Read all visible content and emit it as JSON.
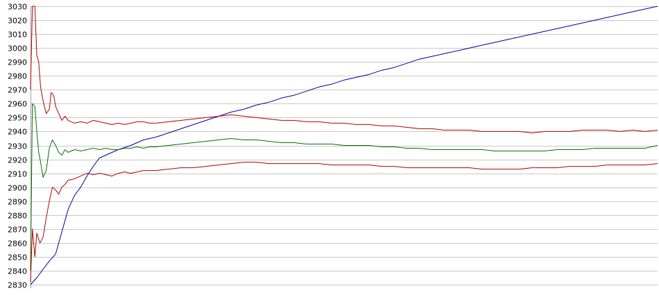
{
  "chart_data": {
    "type": "line",
    "title": "",
    "xlabel": "",
    "ylabel": "",
    "ylim": [
      2830,
      3030
    ],
    "y_ticks": [
      "3030",
      "3020",
      "3010",
      "3000",
      "2990",
      "2980",
      "2970",
      "2960",
      "2950",
      "2940",
      "2930",
      "2920",
      "2910",
      "2900",
      "2890",
      "2880",
      "2870",
      "2860",
      "2850",
      "2840",
      "2830"
    ],
    "grid": true,
    "legend": "none",
    "xlim": [
      0,
      100
    ],
    "series": [
      {
        "color": "#000099",
        "points": [
          [
            0,
            2830
          ],
          [
            1,
            2835
          ],
          [
            2,
            2841
          ],
          [
            3,
            2847
          ],
          [
            4,
            2852
          ],
          [
            5,
            2868
          ],
          [
            6,
            2884
          ],
          [
            7,
            2894
          ],
          [
            8,
            2900
          ],
          [
            9,
            2908
          ],
          [
            10,
            2915
          ],
          [
            11,
            2921
          ],
          [
            12,
            2923
          ],
          [
            13,
            2925
          ],
          [
            14,
            2927
          ],
          [
            16,
            2930
          ],
          [
            18,
            2934
          ],
          [
            20,
            2936
          ],
          [
            22,
            2939
          ],
          [
            24,
            2942
          ],
          [
            26,
            2945
          ],
          [
            28,
            2948
          ],
          [
            30,
            2951
          ],
          [
            32,
            2954
          ],
          [
            34,
            2956
          ],
          [
            36,
            2959
          ],
          [
            38,
            2961
          ],
          [
            40,
            2964
          ],
          [
            42,
            2966
          ],
          [
            44,
            2969
          ],
          [
            46,
            2972
          ],
          [
            48,
            2974
          ],
          [
            50,
            2977
          ],
          [
            52,
            2979
          ],
          [
            54,
            2981
          ],
          [
            56,
            2984
          ],
          [
            58,
            2986
          ],
          [
            60,
            2989
          ],
          [
            62,
            2992
          ],
          [
            64,
            2994
          ],
          [
            66,
            2996
          ],
          [
            68,
            2998
          ],
          [
            70,
            3000
          ],
          [
            72,
            3002
          ],
          [
            74,
            3004
          ],
          [
            76,
            3006
          ],
          [
            78,
            3008
          ],
          [
            80,
            3010
          ],
          [
            82,
            3012
          ],
          [
            84,
            3014
          ],
          [
            86,
            3016
          ],
          [
            88,
            3018
          ],
          [
            90,
            3020
          ],
          [
            92,
            3022
          ],
          [
            94,
            3024
          ],
          [
            96,
            3026
          ],
          [
            98,
            3028
          ],
          [
            100,
            3030
          ]
        ]
      },
      {
        "color": "#b00000",
        "points": [
          [
            0,
            2970
          ],
          [
            0.3,
            3030
          ],
          [
            0.7,
            3030
          ],
          [
            1,
            2995
          ],
          [
            1.3,
            2990
          ],
          [
            1.6,
            2972
          ],
          [
            2,
            2962
          ],
          [
            2.5,
            2953
          ],
          [
            3,
            2956
          ],
          [
            3.3,
            2968
          ],
          [
            3.7,
            2966
          ],
          [
            4,
            2958
          ],
          [
            4.5,
            2953
          ],
          [
            5,
            2948
          ],
          [
            5.5,
            2951
          ],
          [
            6,
            2948
          ],
          [
            7,
            2946
          ],
          [
            8,
            2947
          ],
          [
            9,
            2946
          ],
          [
            10,
            2948
          ],
          [
            11,
            2947
          ],
          [
            12,
            2946
          ],
          [
            13,
            2945
          ],
          [
            14,
            2946
          ],
          [
            15,
            2945
          ],
          [
            16,
            2946
          ],
          [
            17,
            2947
          ],
          [
            18,
            2947
          ],
          [
            19,
            2946
          ],
          [
            20,
            2946
          ],
          [
            22,
            2947
          ],
          [
            24,
            2948
          ],
          [
            26,
            2949
          ],
          [
            28,
            2950
          ],
          [
            30,
            2951
          ],
          [
            32,
            2952
          ],
          [
            34,
            2951
          ],
          [
            36,
            2950
          ],
          [
            38,
            2949
          ],
          [
            40,
            2948
          ],
          [
            42,
            2948
          ],
          [
            44,
            2947
          ],
          [
            46,
            2947
          ],
          [
            48,
            2946
          ],
          [
            50,
            2946
          ],
          [
            52,
            2945
          ],
          [
            54,
            2945
          ],
          [
            56,
            2944
          ],
          [
            58,
            2944
          ],
          [
            60,
            2943
          ],
          [
            62,
            2942
          ],
          [
            64,
            2942
          ],
          [
            66,
            2941
          ],
          [
            68,
            2941
          ],
          [
            70,
            2941
          ],
          [
            72,
            2940
          ],
          [
            74,
            2940
          ],
          [
            76,
            2940
          ],
          [
            78,
            2940
          ],
          [
            80,
            2939
          ],
          [
            82,
            2940
          ],
          [
            84,
            2940
          ],
          [
            86,
            2940
          ],
          [
            88,
            2941
          ],
          [
            90,
            2941
          ],
          [
            92,
            2941
          ],
          [
            94,
            2940
          ],
          [
            96,
            2941
          ],
          [
            98,
            2940
          ],
          [
            100,
            2941
          ]
        ]
      },
      {
        "color": "#007000",
        "points": [
          [
            0,
            2840
          ],
          [
            0.3,
            2960
          ],
          [
            0.7,
            2958
          ],
          [
            1,
            2940
          ],
          [
            1.3,
            2925
          ],
          [
            1.6,
            2918
          ],
          [
            2,
            2907
          ],
          [
            2.5,
            2912
          ],
          [
            3,
            2928
          ],
          [
            3.5,
            2934
          ],
          [
            4,
            2930
          ],
          [
            4.5,
            2925
          ],
          [
            5,
            2923
          ],
          [
            5.5,
            2927
          ],
          [
            6,
            2925
          ],
          [
            7,
            2927
          ],
          [
            8,
            2926
          ],
          [
            9,
            2927
          ],
          [
            10,
            2928
          ],
          [
            11,
            2927
          ],
          [
            12,
            2928
          ],
          [
            13,
            2927
          ],
          [
            14,
            2927
          ],
          [
            15,
            2928
          ],
          [
            16,
            2928
          ],
          [
            17,
            2929
          ],
          [
            18,
            2928
          ],
          [
            19,
            2929
          ],
          [
            20,
            2929
          ],
          [
            22,
            2930
          ],
          [
            24,
            2931
          ],
          [
            26,
            2932
          ],
          [
            28,
            2933
          ],
          [
            30,
            2934
          ],
          [
            32,
            2935
          ],
          [
            34,
            2934
          ],
          [
            36,
            2934
          ],
          [
            38,
            2933
          ],
          [
            40,
            2932
          ],
          [
            42,
            2932
          ],
          [
            44,
            2931
          ],
          [
            46,
            2931
          ],
          [
            48,
            2931
          ],
          [
            50,
            2930
          ],
          [
            52,
            2930
          ],
          [
            54,
            2930
          ],
          [
            56,
            2929
          ],
          [
            58,
            2929
          ],
          [
            60,
            2928
          ],
          [
            62,
            2928
          ],
          [
            64,
            2927
          ],
          [
            66,
            2927
          ],
          [
            68,
            2927
          ],
          [
            70,
            2927
          ],
          [
            72,
            2927
          ],
          [
            74,
            2926
          ],
          [
            76,
            2926
          ],
          [
            78,
            2926
          ],
          [
            80,
            2926
          ],
          [
            82,
            2926
          ],
          [
            84,
            2927
          ],
          [
            86,
            2927
          ],
          [
            88,
            2927
          ],
          [
            90,
            2928
          ],
          [
            92,
            2928
          ],
          [
            94,
            2928
          ],
          [
            96,
            2928
          ],
          [
            98,
            2928
          ],
          [
            100,
            2930
          ]
        ]
      },
      {
        "color": "#b00000",
        "points": [
          [
            0,
            2832
          ],
          [
            0.3,
            2870
          ],
          [
            0.7,
            2850
          ],
          [
            1,
            2867
          ],
          [
            1.5,
            2860
          ],
          [
            2,
            2864
          ],
          [
            2.5,
            2878
          ],
          [
            3,
            2890
          ],
          [
            3.5,
            2900
          ],
          [
            4,
            2898
          ],
          [
            4.5,
            2895
          ],
          [
            5,
            2900
          ],
          [
            5.5,
            2902
          ],
          [
            6,
            2905
          ],
          [
            7,
            2906
          ],
          [
            8,
            2908
          ],
          [
            9,
            2910
          ],
          [
            10,
            2909
          ],
          [
            11,
            2910
          ],
          [
            12,
            2909
          ],
          [
            13,
            2908
          ],
          [
            14,
            2910
          ],
          [
            15,
            2911
          ],
          [
            16,
            2910
          ],
          [
            17,
            2911
          ],
          [
            18,
            2912
          ],
          [
            19,
            2912
          ],
          [
            20,
            2912
          ],
          [
            22,
            2913
          ],
          [
            24,
            2914
          ],
          [
            26,
            2914
          ],
          [
            28,
            2915
          ],
          [
            30,
            2916
          ],
          [
            32,
            2917
          ],
          [
            34,
            2918
          ],
          [
            36,
            2918
          ],
          [
            38,
            2917
          ],
          [
            40,
            2917
          ],
          [
            42,
            2917
          ],
          [
            44,
            2917
          ],
          [
            46,
            2917
          ],
          [
            48,
            2916
          ],
          [
            50,
            2916
          ],
          [
            52,
            2916
          ],
          [
            54,
            2916
          ],
          [
            56,
            2915
          ],
          [
            58,
            2915
          ],
          [
            60,
            2914
          ],
          [
            62,
            2914
          ],
          [
            64,
            2914
          ],
          [
            66,
            2914
          ],
          [
            68,
            2914
          ],
          [
            70,
            2914
          ],
          [
            72,
            2913
          ],
          [
            74,
            2913
          ],
          [
            76,
            2913
          ],
          [
            78,
            2913
          ],
          [
            80,
            2914
          ],
          [
            82,
            2914
          ],
          [
            84,
            2914
          ],
          [
            86,
            2915
          ],
          [
            88,
            2915
          ],
          [
            90,
            2915
          ],
          [
            92,
            2916
          ],
          [
            94,
            2916
          ],
          [
            96,
            2916
          ],
          [
            98,
            2916
          ],
          [
            100,
            2917
          ]
        ]
      }
    ]
  }
}
